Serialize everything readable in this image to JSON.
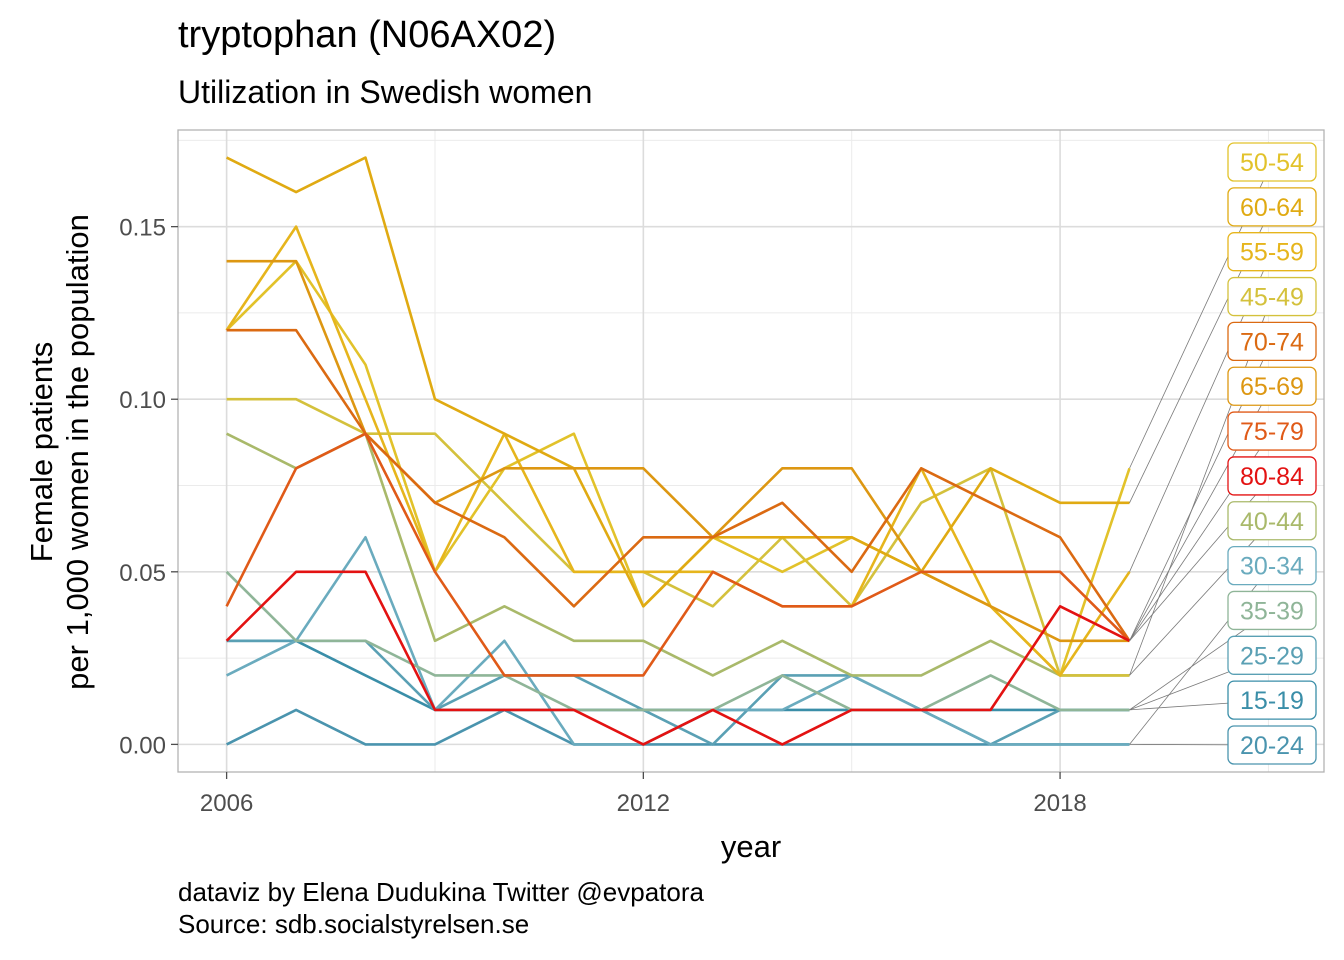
{
  "title": "tryptophan (N06AX02)",
  "subtitle": "Utilization in Swedish women",
  "caption": {
    "line1": "dataviz by Elena Dudukina Twitter @evpatora",
    "line2": "Source: sdb.socialstyrelsen.se"
  },
  "chart_data": {
    "type": "line",
    "title": "tryptophan (N06AX02)",
    "subtitle": "Utilization in Swedish women",
    "xlabel": "year",
    "ylabel_lines": [
      "Female patients",
      "per 1,000 women in the population"
    ],
    "xlim": [
      2005.3,
      2021.8
    ],
    "ylim": [
      -0.008,
      0.178
    ],
    "x_ticks": [
      2006,
      2012,
      2018
    ],
    "x_tick_labels": [
      "2006",
      "2012",
      "2018"
    ],
    "y_ticks": [
      0,
      0.05,
      0.1,
      0.15
    ],
    "y_tick_labels": [
      "0.00",
      "0.05",
      "0.10",
      "0.15"
    ],
    "grid": true,
    "legend": "direct labels at right end of lines",
    "x": [
      2006,
      2007,
      2008,
      2009,
      2010,
      2011,
      2012,
      2013,
      2014,
      2015,
      2016,
      2017,
      2018,
      2019
    ],
    "series": [
      {
        "name": "15-19",
        "color": "#3a8ea8",
        "values": [
          0.03,
          0.03,
          0.02,
          0.01,
          0.01,
          0.01,
          0.01,
          0.01,
          0.01,
          0.01,
          0.01,
          0.01,
          0.01,
          0.01
        ]
      },
      {
        "name": "20-24",
        "color": "#4a94ae",
        "values": [
          0.0,
          0.01,
          0.0,
          0.0,
          0.01,
          0.0,
          0.0,
          0.0,
          0.0,
          0.0,
          0.0,
          0.0,
          0.0,
          0.0
        ]
      },
      {
        "name": "25-29",
        "color": "#5aa0b4",
        "values": [
          0.03,
          0.03,
          0.03,
          0.01,
          0.02,
          0.02,
          0.01,
          0.0,
          0.02,
          0.02,
          0.01,
          0.0,
          0.01,
          0.01
        ]
      },
      {
        "name": "30-34",
        "color": "#6aabbe",
        "values": [
          0.02,
          0.03,
          0.06,
          0.01,
          0.03,
          0.0,
          0.0,
          0.01,
          0.01,
          0.02,
          0.01,
          0.0,
          0.0,
          0.0
        ]
      },
      {
        "name": "35-39",
        "color": "#8fb598",
        "values": [
          0.05,
          0.03,
          0.03,
          0.02,
          0.02,
          0.01,
          0.01,
          0.01,
          0.02,
          0.01,
          0.01,
          0.02,
          0.01,
          0.01
        ]
      },
      {
        "name": "40-44",
        "color": "#a9b96a",
        "values": [
          0.09,
          0.08,
          0.09,
          0.03,
          0.04,
          0.03,
          0.03,
          0.02,
          0.03,
          0.02,
          0.02,
          0.03,
          0.02,
          0.02
        ]
      },
      {
        "name": "45-49",
        "color": "#d4c13c",
        "values": [
          0.1,
          0.1,
          0.09,
          0.09,
          0.07,
          0.05,
          0.05,
          0.04,
          0.06,
          0.04,
          0.07,
          0.08,
          0.02,
          0.02
        ]
      },
      {
        "name": "50-54",
        "color": "#e2c22a",
        "values": [
          0.12,
          0.14,
          0.11,
          0.05,
          0.08,
          0.09,
          0.04,
          0.06,
          0.05,
          0.06,
          0.05,
          0.04,
          0.02,
          0.08
        ]
      },
      {
        "name": "55-59",
        "color": "#e6b51c",
        "values": [
          0.12,
          0.15,
          0.1,
          0.05,
          0.09,
          0.05,
          0.05,
          0.05,
          0.04,
          0.04,
          0.08,
          0.04,
          0.02,
          0.05
        ]
      },
      {
        "name": "60-64",
        "color": "#e0aa12",
        "values": [
          0.17,
          0.16,
          0.17,
          0.1,
          0.09,
          0.08,
          0.04,
          0.06,
          0.06,
          0.06,
          0.05,
          0.08,
          0.07,
          0.07
        ]
      },
      {
        "name": "65-69",
        "color": "#dd9712",
        "values": [
          0.14,
          0.14,
          0.09,
          0.07,
          0.08,
          0.08,
          0.08,
          0.06,
          0.08,
          0.08,
          0.05,
          0.04,
          0.03,
          0.03
        ]
      },
      {
        "name": "70-74",
        "color": "#db6a12",
        "values": [
          0.12,
          0.12,
          0.09,
          0.07,
          0.06,
          0.04,
          0.06,
          0.06,
          0.07,
          0.05,
          0.08,
          0.07,
          0.06,
          0.03
        ]
      },
      {
        "name": "75-79",
        "color": "#e05a18",
        "values": [
          0.04,
          0.08,
          0.09,
          0.05,
          0.02,
          0.02,
          0.02,
          0.05,
          0.04,
          0.04,
          0.05,
          0.05,
          0.05,
          0.03
        ]
      },
      {
        "name": "80-84",
        "color": "#e31212",
        "values": [
          0.03,
          0.05,
          0.05,
          0.01,
          0.01,
          0.01,
          0.0,
          0.01,
          0.0,
          0.01,
          0.01,
          0.01,
          0.04,
          0.03
        ]
      }
    ],
    "label_order": [
      "50-54",
      "60-64",
      "55-59",
      "45-49",
      "70-74",
      "65-69",
      "75-79",
      "80-84",
      "40-44",
      "30-34",
      "35-39",
      "25-29",
      "15-19",
      "20-24"
    ]
  }
}
